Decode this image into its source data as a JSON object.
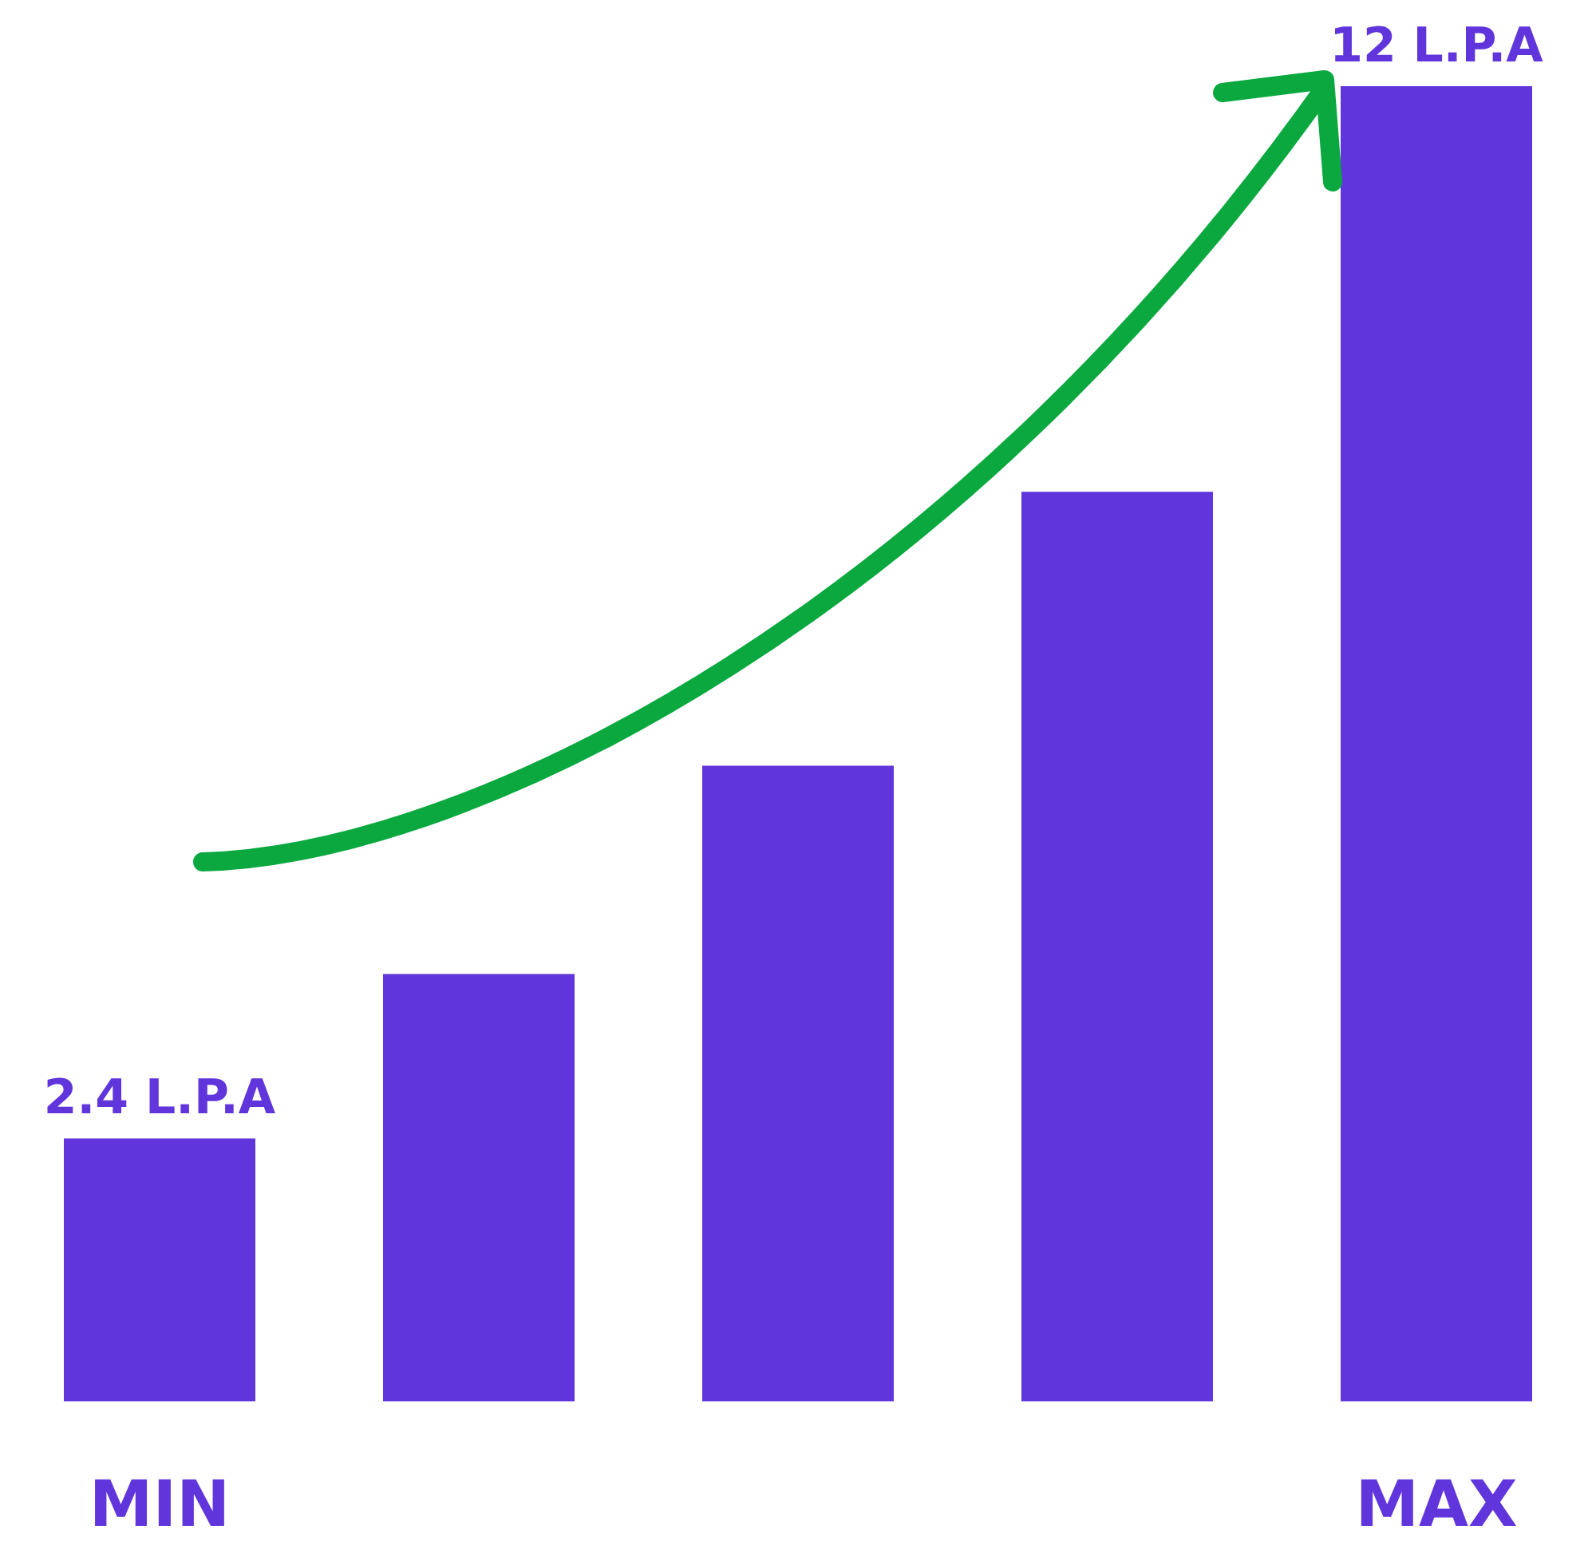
{
  "chart_data": {
    "type": "bar",
    "categories": [
      "MIN",
      null,
      null,
      null,
      "MAX"
    ],
    "values": [
      2.4,
      3.9,
      5.8,
      8.3,
      12
    ],
    "value_labels": [
      "2.4 L.P.A",
      null,
      null,
      null,
      "12 L.P.A"
    ],
    "tick_labels": "x",
    "color": "#6035dc"
  }
}
